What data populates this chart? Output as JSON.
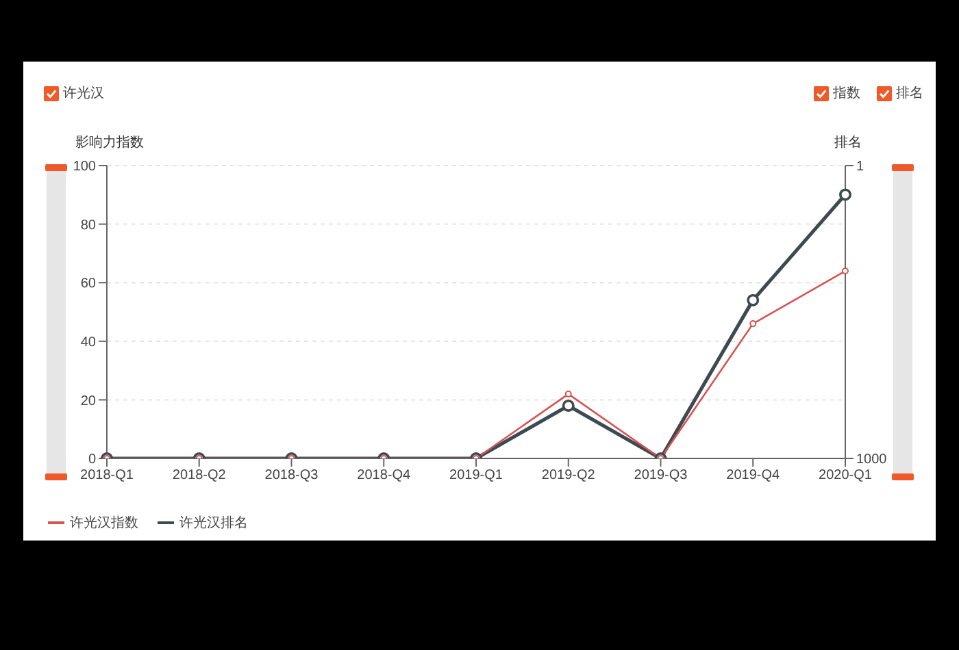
{
  "chart_data": {
    "type": "line",
    "categories": [
      "2018-Q1",
      "2018-Q2",
      "2018-Q3",
      "2018-Q4",
      "2019-Q1",
      "2019-Q2",
      "2019-Q3",
      "2019-Q4",
      "2020-Q1"
    ],
    "series": [
      {
        "name": "许光汉指数",
        "color": "#d9534f",
        "values": [
          0,
          0,
          0,
          0,
          0,
          22,
          0,
          46,
          64
        ]
      },
      {
        "name": "许光汉排名",
        "color": "#3e4a52",
        "axis": "y2",
        "values": [
          1000,
          1000,
          1000,
          1000,
          1000,
          820,
          1000,
          460,
          100
        ]
      }
    ],
    "ylabel": "影响力指数",
    "y2label": "排名",
    "ylim": [
      0,
      100
    ],
    "yticks": [
      0,
      20,
      40,
      60,
      80,
      100
    ],
    "y2lim": [
      1000,
      1
    ],
    "y2ticks": [
      1,
      1000
    ],
    "grid": "y",
    "marker": "circle",
    "line_style": "solid",
    "legend": "bottom left",
    "annotations": [
      "许光汉",
      "指数",
      "排名"
    ]
  }
}
